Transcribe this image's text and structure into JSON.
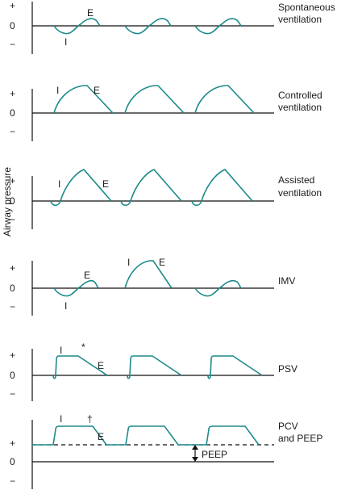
{
  "y_axis_label": "Airway pressure",
  "axis_symbols": {
    "plus": "+",
    "zero": "0",
    "minus": "−"
  },
  "panels": [
    {
      "title_lines": [
        "Spontaneous",
        "ventilation"
      ],
      "markers": [
        "E",
        "I"
      ]
    },
    {
      "title_lines": [
        "Controlled",
        "ventilation"
      ],
      "markers": [
        "I",
        "E"
      ]
    },
    {
      "title_lines": [
        "Assisted",
        "ventilation"
      ],
      "markers": [
        "I",
        "E"
      ]
    },
    {
      "title_lines": [
        "IMV"
      ],
      "markers": [
        "E",
        "I",
        "I",
        "E"
      ]
    },
    {
      "title_lines": [
        "PSV"
      ],
      "markers": [
        "I",
        "*",
        "E"
      ]
    },
    {
      "title_lines": [
        "PCV",
        "and PEEP"
      ],
      "markers": [
        "I",
        "†",
        "E"
      ],
      "peep_label": "PEEP"
    }
  ],
  "colors": {
    "waveform": "#1c8a8a",
    "axes": "#111111",
    "text": "#1a1a1a"
  }
}
